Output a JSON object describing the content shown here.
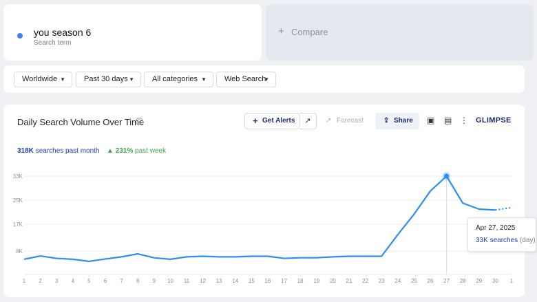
{
  "search_term": {
    "name": "you season 6",
    "sublabel": "Search term",
    "color": "#3b82f6"
  },
  "compare": {
    "plus": "+",
    "label": "Compare"
  },
  "filters": [
    {
      "label": "Worldwide"
    },
    {
      "label": "Past 30 days"
    },
    {
      "label": "All categories"
    },
    {
      "label": "Web Search"
    }
  ],
  "chart_panel": {
    "title": "Daily Search Volume Over Time",
    "get_alerts": "Get Alerts",
    "forecast": "Forecast",
    "share": "Share",
    "brand": "GLIMPSE",
    "stat_volume": "318K",
    "stat_volume_suffix": "searches past month",
    "stat_growth": "231%",
    "stat_growth_suffix": "past week",
    "tooltip": {
      "date": "Apr 27, 2025",
      "value": "33K searches",
      "unit": "(day)"
    }
  },
  "chart_data": {
    "type": "line",
    "title": "Daily Search Volume Over Time",
    "xlabel": "",
    "ylabel": "",
    "x": [
      "1",
      "2",
      "3",
      "4",
      "5",
      "6",
      "7",
      "8",
      "9",
      "10",
      "11",
      "12",
      "13",
      "14",
      "15",
      "16",
      "17",
      "18",
      "19",
      "20",
      "21",
      "22",
      "23",
      "24",
      "25",
      "26",
      "27",
      "28",
      "29",
      "30",
      "1"
    ],
    "y_ticks": [
      "8K",
      "17K",
      "25K",
      "33K"
    ],
    "y_tick_values": [
      8000,
      17000,
      25000,
      33000
    ],
    "ylim": [
      0,
      33000
    ],
    "grid": true,
    "series": [
      {
        "color": "#2a8ff0",
        "values": [
          5300,
          6400,
          5600,
          5300,
          4600,
          5400,
          6100,
          7100,
          5800,
          5300,
          6100,
          6300,
          6100,
          6100,
          6300,
          6300,
          5600,
          5800,
          5800,
          6100,
          6300,
          6300,
          6300,
          13500,
          20300,
          28000,
          33000,
          24000,
          22000,
          21700,
          22500
        ],
        "forecast_from_index": 29
      }
    ],
    "highlight_index": 26
  }
}
